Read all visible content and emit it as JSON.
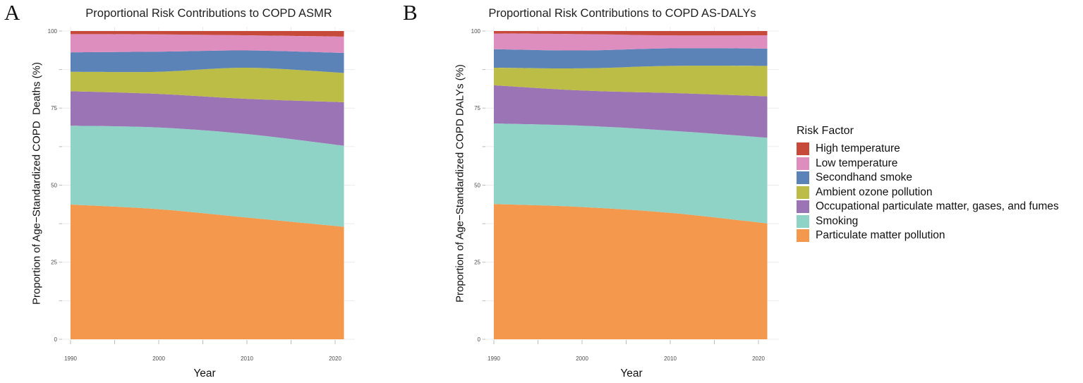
{
  "panels": [
    {
      "letter": "A",
      "title": "Proportional Risk Contributions to COPD ASMR",
      "ylabel": "Proportion of Age−Standardized COPD  Deaths (%)",
      "xlabel": "Year"
    },
    {
      "letter": "B",
      "title": "Proportional Risk Contributions to COPD AS-DALYs",
      "ylabel": "Proportion of Age−Standardized COPD DALYs (%)",
      "xlabel": "Year"
    }
  ],
  "legend": {
    "title": "Risk Factor",
    "items": [
      {
        "label": "High temperature",
        "color": "#c6493a"
      },
      {
        "label": "Low temperature",
        "color": "#de8dbf"
      },
      {
        "label": "Secondhand smoke",
        "color": "#5b83b8"
      },
      {
        "label": "Ambient ozone pollution",
        "color": "#bcbd46"
      },
      {
        "label": "Occupational particulate matter, gases, and fumes",
        "color": "#9b74b6"
      },
      {
        "label": "Smoking",
        "color": "#8fd2c6"
      },
      {
        "label": "Particulate matter pollution",
        "color": "#f3984d"
      }
    ]
  },
  "chart_data": [
    {
      "type": "area",
      "stacked": true,
      "units": "percent",
      "title": "Proportional Risk Contributions to COPD ASMR",
      "xlabel": "Year",
      "ylabel": "Proportion of Age−Standardized COPD  Deaths (%)",
      "x": [
        1990,
        2000,
        2010,
        2021
      ],
      "xlim": [
        1990,
        2021
      ],
      "ylim": [
        0,
        100
      ],
      "xticks": [
        1990,
        2000,
        2010,
        2020
      ],
      "yticks": [
        0,
        25,
        50,
        75,
        100
      ],
      "grid": true,
      "legend_position": "right",
      "series": [
        {
          "name": "Particulate matter pollution",
          "color": "#f3984d",
          "values": [
            43.7,
            42.2,
            39.5,
            36.5
          ]
        },
        {
          "name": "Smoking",
          "color": "#8fd2c6",
          "values": [
            25.6,
            26.5,
            27.1,
            26.3
          ]
        },
        {
          "name": "Occupational particulate matter, gases, and fumes",
          "color": "#9b74b6",
          "values": [
            11.2,
            10.9,
            11.4,
            14.1
          ]
        },
        {
          "name": "Ambient ozone pollution",
          "color": "#bcbd46",
          "values": [
            6.3,
            7.2,
            10.1,
            9.5
          ]
        },
        {
          "name": "Secondhand smoke",
          "color": "#5b83b8",
          "values": [
            6.3,
            6.5,
            5.6,
            6.5
          ]
        },
        {
          "name": "Low temperature",
          "color": "#de8dbf",
          "values": [
            5.9,
            5.6,
            4.9,
            5.3
          ]
        },
        {
          "name": "High temperature",
          "color": "#c6493a",
          "values": [
            1.0,
            1.1,
            1.4,
            1.8
          ]
        }
      ]
    },
    {
      "type": "area",
      "stacked": true,
      "units": "percent",
      "title": "Proportional Risk Contributions to COPD AS-DALYs",
      "xlabel": "Year",
      "ylabel": "Proportion of Age−Standardized COPD DALYs (%)",
      "x": [
        1990,
        2000,
        2010,
        2021
      ],
      "xlim": [
        1990,
        2021
      ],
      "ylim": [
        0,
        100
      ],
      "xticks": [
        1990,
        2000,
        2010,
        2020
      ],
      "yticks": [
        0,
        25,
        50,
        75,
        100
      ],
      "grid": true,
      "legend_position": "right",
      "series": [
        {
          "name": "Particulate matter pollution",
          "color": "#f3984d",
          "values": [
            43.9,
            42.9,
            41.0,
            37.6
          ]
        },
        {
          "name": "Smoking",
          "color": "#8fd2c6",
          "values": [
            26.1,
            26.4,
            26.7,
            27.8
          ]
        },
        {
          "name": "Occupational particulate matter, gases, and fumes",
          "color": "#9b74b6",
          "values": [
            12.4,
            11.4,
            12.2,
            13.4
          ]
        },
        {
          "name": "Ambient ozone pollution",
          "color": "#bcbd46",
          "values": [
            5.7,
            7.2,
            8.8,
            9.9
          ]
        },
        {
          "name": "Secondhand smoke",
          "color": "#5b83b8",
          "values": [
            6.0,
            5.8,
            5.7,
            5.6
          ]
        },
        {
          "name": "Low temperature",
          "color": "#de8dbf",
          "values": [
            5.1,
            5.3,
            4.2,
            4.3
          ]
        },
        {
          "name": "High temperature",
          "color": "#c6493a",
          "values": [
            0.8,
            1.0,
            1.4,
            1.4
          ]
        }
      ]
    }
  ]
}
